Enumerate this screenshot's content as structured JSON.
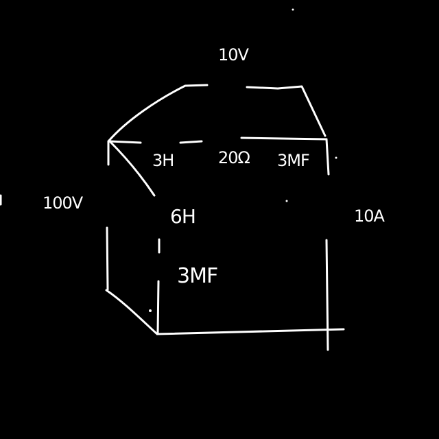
{
  "colors": {
    "background": "#000000",
    "ink": "#ffffff"
  },
  "labels": {
    "top_source": "10V",
    "left_source": "100V",
    "right_source": "10A",
    "top_inductor": "3H",
    "top_resistor": "20Ω",
    "top_capacitor": "3MF",
    "middle_inductor": "6H",
    "middle_capacitor": "3MF"
  }
}
